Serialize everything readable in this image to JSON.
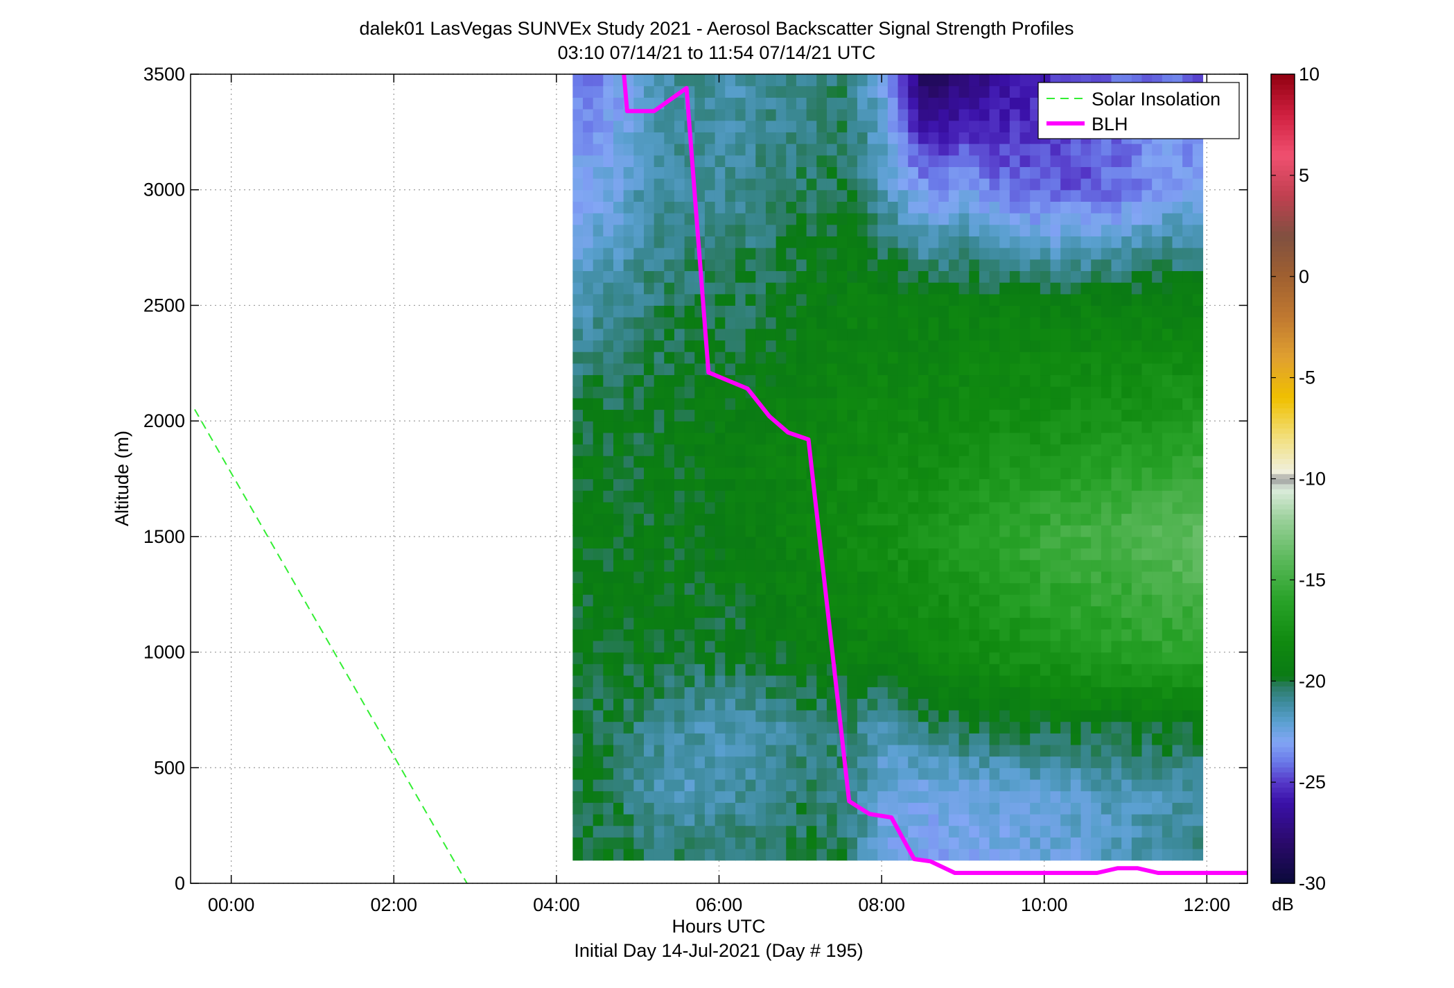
{
  "chart_data": {
    "type": "heatmap",
    "title": "dalek01 LasVegas SUNVEx Study 2021 - Aerosol Backscatter Signal Strength Profiles",
    "subtitle": "03:10 07/14/21 to 11:54 07/14/21  UTC",
    "xlabel": "Hours UTC",
    "xlabel2": "Initial Day 14-Jul-2021 (Day # 195)",
    "ylabel": "Altitude (m)",
    "xlim": [
      -0.5,
      12.5
    ],
    "ylim": [
      0,
      3500
    ],
    "x_ticks": [
      0,
      2,
      4,
      6,
      8,
      10,
      12
    ],
    "x_tick_labels": [
      "00:00",
      "02:00",
      "04:00",
      "06:00",
      "08:00",
      "10:00",
      "12:00"
    ],
    "y_ticks": [
      0,
      500,
      1000,
      1500,
      2000,
      2500,
      3000,
      3500
    ],
    "y_tick_labels": [
      "0",
      "500",
      "1000",
      "1500",
      "2000",
      "2500",
      "3000",
      "3500"
    ],
    "grid": true,
    "legend_position": "top-right",
    "colorbar": {
      "label": "dB",
      "range": [
        -30,
        10
      ],
      "ticks": [
        10,
        5,
        0,
        -5,
        -10,
        -15,
        -20,
        -25,
        -30
      ],
      "tick_labels": [
        "10",
        "5",
        "0",
        "-5",
        "-10",
        "-15",
        "-20",
        "-25",
        "-30"
      ],
      "colormap": [
        [
          -30,
          "#0a0a3a"
        ],
        [
          -28,
          "#2a0a6a"
        ],
        [
          -26,
          "#3a10a8"
        ],
        [
          -25,
          "#5538c8"
        ],
        [
          -24,
          "#6a78e8"
        ],
        [
          -23,
          "#82a6f4"
        ],
        [
          -22,
          "#5aa0d0"
        ],
        [
          -21,
          "#3c8a9a"
        ],
        [
          -20.2,
          "#2a7a60"
        ],
        [
          -19.8,
          "#0a7a14"
        ],
        [
          -18,
          "#108a10"
        ],
        [
          -16,
          "#28a228"
        ],
        [
          -14,
          "#5ab85a"
        ],
        [
          -12,
          "#9ad09a"
        ],
        [
          -10.5,
          "#dcecdc"
        ],
        [
          -10,
          "#9a9a9a"
        ],
        [
          -9.7,
          "#f0f0e0"
        ],
        [
          -8,
          "#f2e080"
        ],
        [
          -6,
          "#f0c000"
        ],
        [
          -4,
          "#e0a030"
        ],
        [
          -2,
          "#c07830"
        ],
        [
          0,
          "#a06030"
        ],
        [
          2,
          "#805040"
        ],
        [
          4,
          "#c04050"
        ],
        [
          6,
          "#f05070"
        ],
        [
          8,
          "#d02040"
        ],
        [
          10,
          "#900010"
        ]
      ]
    },
    "backscatter": {
      "x_range": [
        4.2,
        11.95
      ],
      "y_range": [
        100,
        3500
      ],
      "description_cells_db": [
        [
          3500,
          -24,
          -23.5,
          -21.5,
          -21,
          -21.5,
          -21,
          -20.8,
          -20.6,
          -23,
          -29,
          -27.5,
          -26.5,
          -25.5,
          -24.5,
          -24,
          -24,
          -24.5
        ],
        [
          3000,
          -23,
          -22.5,
          -21.2,
          -21,
          -21,
          -20.6,
          -20.3,
          -20,
          -21.8,
          -23.5,
          -23,
          -24,
          -24.5,
          -24.5,
          -24,
          -23,
          -23
        ],
        [
          2500,
          -21.5,
          -21,
          -20.5,
          -20.2,
          -20.2,
          -20,
          -19.5,
          -19,
          -19,
          -19,
          -19,
          -19,
          -19,
          -19,
          -19,
          -19,
          -19
        ],
        [
          2000,
          -19.8,
          -19.8,
          -19.8,
          -19.5,
          -19.3,
          -19,
          -18.6,
          -18.4,
          -18.2,
          -18.2,
          -18,
          -17.8,
          -17.6,
          -17.4,
          -17.2,
          -16.8,
          -16.4
        ],
        [
          1500,
          -19.6,
          -19.6,
          -19.6,
          -19.5,
          -19.3,
          -19,
          -18.5,
          -18,
          -17.6,
          -17,
          -16.4,
          -15.8,
          -15.2,
          -14.8,
          -14.4,
          -14,
          -13.6
        ],
        [
          1000,
          -19.6,
          -19.6,
          -19.6,
          -19.8,
          -19.8,
          -19.6,
          -19.3,
          -19,
          -18.8,
          -18.4,
          -17.9,
          -17.4,
          -17,
          -16.6,
          -16.3,
          -16,
          -15.8
        ],
        [
          700,
          -20,
          -20.2,
          -20.8,
          -21.2,
          -21.5,
          -21.2,
          -20.6,
          -20.5,
          -21.5,
          -20.2,
          -19.8,
          -19.6,
          -19.6,
          -19.6,
          -19.6,
          -19.6,
          -19.6
        ],
        [
          400,
          -20,
          -20.2,
          -21.3,
          -21.7,
          -21.2,
          -20.8,
          -20.4,
          -20.6,
          -22.5,
          -22.6,
          -22.5,
          -22.3,
          -22.1,
          -21.8,
          -21.6,
          -21.4,
          -21.2
        ],
        [
          100,
          -19.8,
          -19.9,
          -20.2,
          -20.4,
          -20.3,
          -20.2,
          -20,
          -20.4,
          -22.6,
          -23,
          -22.8,
          -22.6,
          -22.4,
          -22.2,
          -21.5,
          -21,
          -20.6
        ]
      ]
    },
    "series": [
      {
        "name": "Solar Insolation",
        "color": "#33ee33",
        "style": "dashed",
        "x": [
          -0.45,
          2.9
        ],
        "y": [
          2050,
          0
        ]
      },
      {
        "name": "BLH",
        "color": "#ff00ff",
        "style": "solid",
        "x": [
          4.83,
          4.87,
          4.95,
          5.2,
          5.6,
          5.87,
          6.35,
          6.62,
          6.85,
          7.1,
          7.6,
          7.85,
          8.12,
          8.4,
          8.6,
          8.9,
          10.65,
          10.9,
          11.15,
          11.4,
          12.5
        ],
        "y": [
          3500,
          3340,
          3340,
          3340,
          3440,
          2210,
          2140,
          2020,
          1950,
          1920,
          355,
          300,
          285,
          105,
          95,
          45,
          45,
          65,
          65,
          45,
          45
        ]
      }
    ]
  }
}
